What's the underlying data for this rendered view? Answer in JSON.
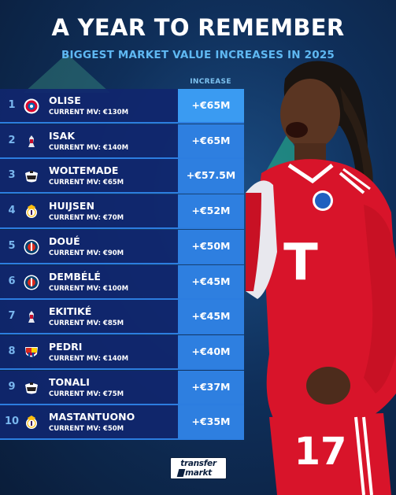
{
  "header": {
    "title": "A YEAR TO REMEMBER",
    "subtitle": "BIGGEST MARKET VALUE INCREASES IN 2025"
  },
  "table": {
    "increase_header": "INCREASE",
    "rows": [
      {
        "rank": "1",
        "name": "OLISE",
        "mv": "CURRENT MV: €130M",
        "increase": "+€65M",
        "crest": "bayern-crest-icon"
      },
      {
        "rank": "2",
        "name": "ISAK",
        "mv": "CURRENT MV: €140M",
        "increase": "+€65M",
        "crest": "liverpool-crest-icon"
      },
      {
        "rank": "3",
        "name": "WOLTEMADE",
        "mv": "CURRENT MV: €65M",
        "increase": "+€57.5M",
        "crest": "newcastle-crest-icon"
      },
      {
        "rank": "4",
        "name": "HUIJSEN",
        "mv": "CURRENT MV: €70M",
        "increase": "+€52M",
        "crest": "real-madrid-crest-icon"
      },
      {
        "rank": "5",
        "name": "DOUÉ",
        "mv": "CURRENT MV: €90M",
        "increase": "+€50M",
        "crest": "psg-crest-icon"
      },
      {
        "rank": "6",
        "name": "DEMBÉLÉ",
        "mv": "CURRENT MV: €100M",
        "increase": "+€45M",
        "crest": "psg-crest-icon"
      },
      {
        "rank": "7",
        "name": "EKITIKÉ",
        "mv": "CURRENT MV: €85M",
        "increase": "+€45M",
        "crest": "liverpool-crest-icon"
      },
      {
        "rank": "8",
        "name": "PEDRI",
        "mv": "CURRENT MV: €140M",
        "increase": "+€40M",
        "crest": "barcelona-crest-icon"
      },
      {
        "rank": "9",
        "name": "TONALI",
        "mv": "CURRENT MV: €75M",
        "increase": "+€37M",
        "crest": "newcastle-crest-icon"
      },
      {
        "rank": "10",
        "name": "MASTANTUONO",
        "mv": "CURRENT MV: €50M",
        "increase": "+€35M",
        "crest": "real-madrid-crest-icon"
      }
    ]
  },
  "player_jersey": {
    "number": "17",
    "sponsor_letter": "T"
  },
  "logo": {
    "line1": "transfer",
    "line2": "markt"
  },
  "colors": {
    "background": "#0f2f5a",
    "row_bg": "#10266e",
    "increase_bg": "#2e7fe0",
    "accent_text": "#5fb8f2",
    "jersey_red": "#d8142a"
  }
}
